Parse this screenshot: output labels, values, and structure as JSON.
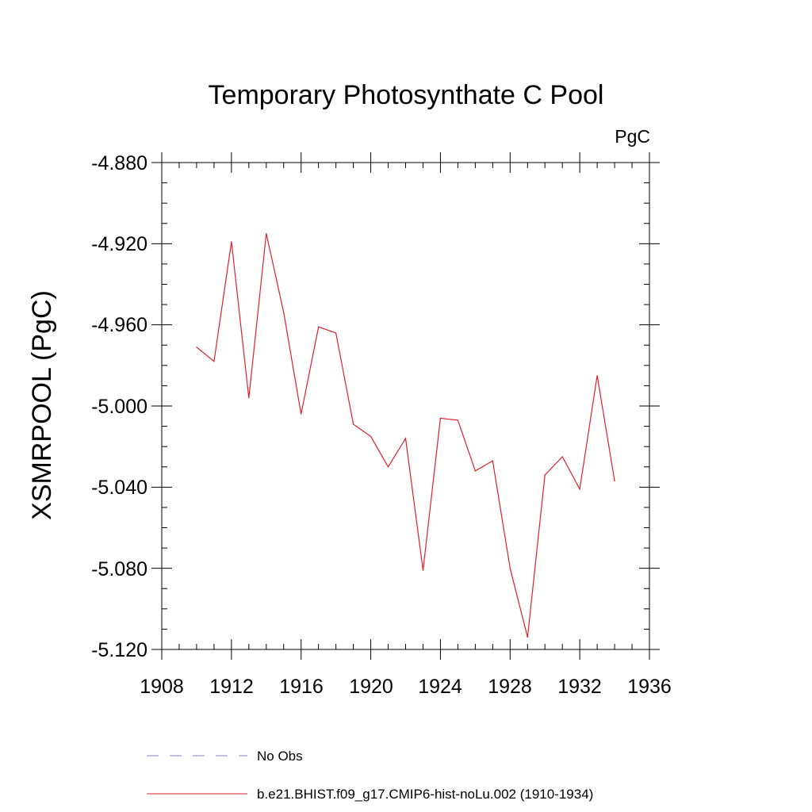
{
  "chart_data": {
    "type": "line",
    "title": "Temporary Photosynthate C Pool",
    "units_label": "PgC",
    "ylabel": "XSMRPOOL  (PgC)",
    "xlabel": "",
    "xlim": [
      1908,
      1936
    ],
    "ylim": [
      -5.12,
      -4.88
    ],
    "x_ticks": [
      "1908",
      "1912",
      "1916",
      "1920",
      "1924",
      "1928",
      "1932",
      "1936"
    ],
    "y_ticks": [
      "-4.880",
      "-4.920",
      "-4.960",
      "-5.000",
      "-5.040",
      "-5.080",
      "-5.120"
    ],
    "grid": false,
    "legend_position": "bottom",
    "legend": [
      {
        "label": "No Obs",
        "color": "#8080c0",
        "style": "dashed"
      },
      {
        "label": "b.e21.BHIST.f09_g17.CMIP6-hist-noLu.002 (1910-1934)",
        "color": "#e0202a",
        "style": "solid"
      }
    ],
    "series": [
      {
        "name": "b.e21.BHIST.f09_g17.CMIP6-hist-noLu.002 (1910-1934)",
        "color": "#e0202a",
        "x": [
          1910,
          1911,
          1912,
          1913,
          1914,
          1915,
          1916,
          1917,
          1918,
          1919,
          1920,
          1921,
          1922,
          1923,
          1924,
          1925,
          1926,
          1927,
          1928,
          1929,
          1930,
          1931,
          1932,
          1933,
          1934
        ],
        "y": [
          -4.971,
          -4.978,
          -4.919,
          -4.996,
          -4.915,
          -4.954,
          -5.004,
          -4.961,
          -4.964,
          -5.009,
          -5.015,
          -5.03,
          -5.016,
          -5.081,
          -5.006,
          -5.007,
          -5.032,
          -5.027,
          -5.08,
          -5.114,
          -5.034,
          -5.025,
          -5.041,
          -4.985,
          -5.037
        ]
      }
    ]
  }
}
